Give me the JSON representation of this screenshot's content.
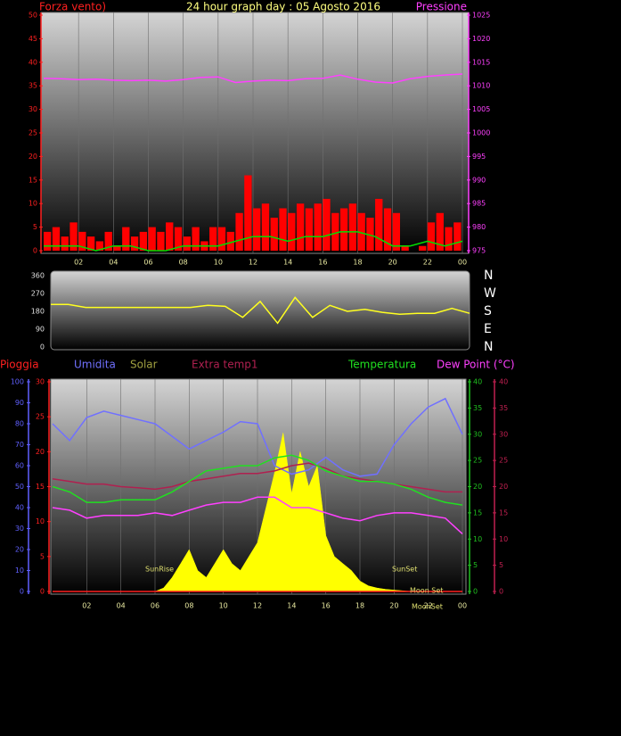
{
  "chart_data": [
    {
      "type": "combo",
      "title": "24 hour graph day : 05 Agosto 2016",
      "title_color": "#ffff80",
      "ylabel": "Forza vento)",
      "y2label": "Pressione",
      "y_color": "#ff2020",
      "y2_color": "#ff40ff",
      "xlim": [
        0,
        24
      ],
      "xticks": [
        {
          "value": 2,
          "label": "02"
        },
        {
          "value": 4,
          "label": "04"
        },
        {
          "value": 6,
          "label": "06"
        },
        {
          "value": 8,
          "label": "08"
        },
        10,
        12,
        14,
        16,
        18,
        20,
        22,
        {
          "value": 24,
          "label": "00"
        }
      ],
      "ylim": [
        0,
        50
      ],
      "yticks": [
        0,
        5,
        10,
        15,
        20,
        25,
        30,
        35,
        40,
        45,
        50
      ],
      "y2lim": [
        975,
        1025
      ],
      "y2ticks": [
        975,
        980,
        985,
        990,
        995,
        1000,
        1005,
        1010,
        1015,
        1020,
        1025
      ],
      "grid": true,
      "series": [
        {
          "type": "bar",
          "color": "#ff0000",
          "x": [
            0,
            0.5,
            1,
            1.5,
            2,
            2.5,
            3,
            3.5,
            4,
            4.5,
            5,
            5.5,
            6,
            6.5,
            7,
            7.5,
            8,
            8.5,
            9,
            9.5,
            10,
            10.5,
            11,
            11.5,
            12,
            12.5,
            13,
            13.5,
            14,
            14.5,
            15,
            15.5,
            16,
            16.5,
            17,
            17.5,
            18,
            18.5,
            19,
            19.5,
            20,
            20.5,
            21,
            21.5,
            22,
            22.5,
            23,
            23.5
          ],
          "values": [
            4,
            5,
            3,
            6,
            4,
            3,
            2,
            4,
            1,
            5,
            3,
            4,
            5,
            4,
            6,
            5,
            3,
            5,
            2,
            5,
            5,
            4,
            8,
            16,
            9,
            10,
            7,
            9,
            8,
            10,
            9,
            10,
            11,
            8,
            9,
            10,
            8,
            7,
            11,
            9,
            8,
            1,
            0,
            1,
            6,
            8,
            5,
            6
          ]
        },
        {
          "type": "line",
          "color": "#00e000",
          "x": [
            0,
            1,
            2,
            3,
            4,
            5,
            6,
            7,
            8,
            9,
            10,
            11,
            12,
            13,
            14,
            15,
            16,
            17,
            18,
            19,
            20,
            21,
            22,
            23,
            24
          ],
          "values": [
            1,
            1,
            1,
            0,
            1,
            1,
            0,
            0,
            1,
            1,
            1,
            2,
            3,
            3,
            2,
            3,
            3,
            4,
            4,
            3,
            1,
            1,
            2,
            1,
            2
          ]
        },
        {
          "type": "line",
          "color": "#ff40ff",
          "axis": "y2",
          "x": [
            0,
            1,
            2,
            3,
            4,
            5,
            6,
            7,
            8,
            9,
            10,
            11,
            12,
            13,
            14,
            15,
            16,
            17,
            18,
            19,
            20,
            21,
            22,
            23,
            24
          ],
          "values": [
            1011.6,
            1011.5,
            1011.3,
            1011.4,
            1011.2,
            1011.1,
            1011.2,
            1011.0,
            1011.3,
            1011.8,
            1011.9,
            1010.7,
            1011.0,
            1011.2,
            1011.1,
            1011.5,
            1011.6,
            1012.3,
            1011.4,
            1010.8,
            1010.6,
            1011.5,
            1012.0,
            1012.3,
            1012.5
          ]
        }
      ]
    },
    {
      "type": "line",
      "xlim": [
        0,
        24
      ],
      "y_color": "#e0e0e0",
      "y2_color": "#ffffff",
      "ylim": [
        0,
        360
      ],
      "yticks": [
        0,
        90,
        180,
        270,
        360
      ],
      "y2lim": [
        0,
        360
      ],
      "y2ticks": [
        {
          "value": 360,
          "label": "N"
        },
        {
          "value": 270,
          "label": "W"
        },
        {
          "value": 180,
          "label": "S"
        },
        {
          "value": 90,
          "label": "E"
        },
        {
          "value": 0,
          "label": "N"
        }
      ],
      "series": [
        {
          "type": "line",
          "color": "#ffff20",
          "x": [
            0,
            1,
            2,
            3,
            4,
            5,
            6,
            7,
            8,
            9,
            10,
            11,
            12,
            13,
            14,
            15,
            16,
            17,
            18,
            19,
            20,
            21,
            22,
            23,
            24
          ],
          "values": [
            215,
            215,
            200,
            200,
            200,
            200,
            200,
            200,
            200,
            210,
            205,
            150,
            230,
            120,
            250,
            150,
            210,
            180,
            190,
            175,
            165,
            170,
            170,
            195,
            170
          ]
        }
      ]
    },
    {
      "type": "line",
      "xlim": [
        0,
        24
      ],
      "grid": true,
      "xticks": [
        {
          "value": 2,
          "label": "02"
        },
        {
          "value": 4,
          "label": "04"
        },
        {
          "value": 6,
          "label": "06"
        },
        {
          "value": 8,
          "label": "08"
        },
        10,
        12,
        14,
        16,
        18,
        20,
        22,
        {
          "value": 24,
          "label": "00"
        }
      ],
      "axes": [
        {
          "lim": [
            0,
            100
          ],
          "ticks": [
            0,
            10,
            20,
            30,
            40,
            50,
            60,
            70,
            80,
            90,
            100
          ],
          "color": "#6060ff"
        },
        {
          "lim": [
            0,
            30
          ],
          "ticks": [
            0,
            5,
            10,
            15,
            20,
            25,
            30
          ],
          "color": "#ff2020"
        },
        {
          "lim": [
            0,
            40
          ],
          "ticks": [
            0,
            5,
            10,
            15,
            20,
            25,
            30,
            35,
            40
          ],
          "color": "#20c020"
        },
        {
          "lim": [
            0,
            40
          ],
          "ticks": [
            0,
            5,
            10,
            15,
            20,
            25,
            30,
            35,
            40
          ],
          "color": "#c02050"
        }
      ],
      "annotations": [
        "SunRise",
        "SunSet",
        "Moon Set",
        "MoonSet"
      ],
      "series": [
        {
          "name": "Pioggia",
          "type": "line",
          "color": "#ff2020",
          "axis": 1,
          "x": [
            0,
            1,
            2,
            3,
            4,
            5,
            6,
            7,
            8,
            9,
            10,
            11,
            12,
            13,
            14,
            15,
            16,
            17,
            18,
            19,
            20,
            21,
            22,
            23,
            24
          ],
          "values": [
            0,
            0,
            0,
            0,
            0,
            0,
            0,
            0,
            0,
            0,
            0,
            0,
            0,
            0,
            0,
            0,
            0,
            0,
            0,
            0,
            0,
            0,
            0,
            0,
            0
          ]
        },
        {
          "name": "Umidita",
          "type": "line",
          "color": "#7070ff",
          "axis": 0,
          "x": [
            0,
            1,
            2,
            3,
            4,
            5,
            6,
            7,
            8,
            9,
            10,
            11,
            12,
            13,
            14,
            15,
            16,
            17,
            18,
            19,
            20,
            21,
            22,
            23,
            24
          ],
          "values": [
            80,
            72,
            83,
            86,
            84,
            82,
            80,
            74,
            68,
            72,
            76,
            81,
            80,
            60,
            56,
            58,
            64,
            58,
            55,
            56,
            70,
            80,
            88,
            92,
            75
          ]
        },
        {
          "name": "Solar",
          "type": "area",
          "color": "#ffff00",
          "label_color": "#a0a040",
          "axis": 1,
          "x": [
            5,
            5.5,
            6,
            6.5,
            7,
            7.5,
            8,
            8.5,
            9,
            9.5,
            10,
            10.5,
            11,
            11.5,
            12,
            12.5,
            13,
            13.5,
            14,
            14.5,
            15,
            15.5,
            16,
            16.5,
            17,
            17.5,
            18,
            18.5,
            19,
            19.5,
            20,
            20.5,
            21
          ],
          "values": [
            0,
            0,
            0,
            0.5,
            2,
            4,
            6,
            3,
            2,
            4,
            6,
            4,
            3,
            5,
            7,
            12,
            17,
            22.7,
            14,
            20,
            15,
            18,
            8,
            5,
            4,
            3,
            1.5,
            0.8,
            0.5,
            0.3,
            0.2,
            0.1,
            0
          ]
        },
        {
          "name": "Extra temp1",
          "type": "line",
          "color": "#b02050",
          "axis": 3,
          "x": [
            0,
            1,
            2,
            3,
            4,
            5,
            6,
            7,
            8,
            9,
            10,
            11,
            12,
            13,
            14,
            15,
            16,
            17,
            18,
            19,
            20,
            21,
            22,
            23,
            24
          ],
          "values": [
            21.5,
            21,
            20.5,
            20.5,
            20,
            19.8,
            19.5,
            20,
            21,
            21.5,
            22,
            22.5,
            22.5,
            23,
            24,
            24.5,
            23.5,
            22,
            21.5,
            21,
            20.5,
            20,
            19.5,
            19,
            19
          ]
        },
        {
          "name": "Temperatura",
          "type": "line",
          "color": "#20e020",
          "axis": 2,
          "x": [
            0,
            1,
            2,
            3,
            4,
            5,
            6,
            7,
            8,
            9,
            10,
            11,
            12,
            13,
            14,
            15,
            16,
            17,
            18,
            19,
            20,
            21,
            22,
            23,
            24
          ],
          "values": [
            20,
            19,
            17,
            17,
            17.5,
            17.5,
            17.5,
            19,
            21,
            23,
            23.5,
            24,
            24,
            25.5,
            26,
            25,
            23,
            22,
            21,
            21,
            20.5,
            19.5,
            18,
            17,
            16.5
          ]
        },
        {
          "name": "Dew Point (°C)",
          "type": "line",
          "color": "#ff40ff",
          "axis": 3,
          "x": [
            0,
            1,
            2,
            3,
            4,
            5,
            6,
            7,
            8,
            9,
            10,
            11,
            12,
            13,
            14,
            15,
            16,
            17,
            18,
            19,
            20,
            21,
            22,
            23,
            24
          ],
          "values": [
            16,
            15.5,
            14,
            14.5,
            14.5,
            14.5,
            15,
            14.5,
            15.5,
            16.5,
            17,
            17,
            18,
            18,
            16,
            16,
            15,
            14,
            13.5,
            14.5,
            15,
            15,
            14.5,
            14,
            11
          ]
        }
      ]
    }
  ]
}
